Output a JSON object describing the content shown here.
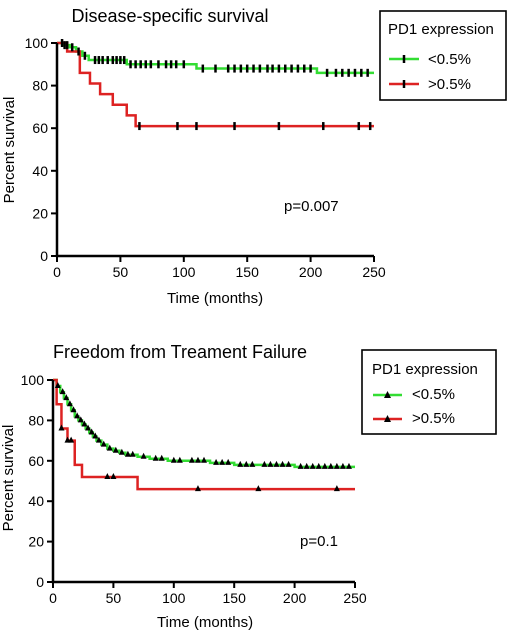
{
  "chart_data": [
    {
      "type": "line",
      "subtype": "kaplan-meier",
      "title": "Disease-specific survival",
      "xlabel": "Time (months)",
      "ylabel": "Percent survival",
      "xlim": [
        0,
        250
      ],
      "ylim": [
        0,
        100
      ],
      "xticks": [
        "0",
        "50",
        "100",
        "150",
        "200",
        "250"
      ],
      "yticks": [
        "0",
        "20",
        "40",
        "60",
        "80",
        "100"
      ],
      "annotation": "p=0.007",
      "legend": {
        "title": "PD1 expression",
        "position": "top-right"
      },
      "series": [
        {
          "name": "<0.5%",
          "color": "#33dd33",
          "x": [
            0,
            5,
            10,
            15,
            20,
            25,
            55,
            110,
            205,
            250
          ],
          "y": [
            100,
            99,
            98,
            96,
            94,
            92,
            90,
            88,
            86,
            86
          ],
          "censor_x": [
            4,
            6,
            8,
            12,
            17,
            22,
            30,
            33,
            36,
            40,
            44,
            47,
            50,
            53,
            58,
            62,
            66,
            70,
            74,
            80,
            86,
            90,
            94,
            100,
            115,
            125,
            135,
            140,
            145,
            150,
            155,
            160,
            166,
            170,
            175,
            180,
            185,
            190,
            195,
            200,
            213,
            220,
            225,
            230,
            235,
            240,
            245
          ]
        },
        {
          "name": ">0.5%",
          "color": "#dd2222",
          "x": [
            0,
            8,
            18,
            26,
            34,
            44,
            55,
            62,
            250
          ],
          "y": [
            100,
            96,
            86,
            81,
            76,
            71,
            66,
            61,
            61
          ],
          "censor_x": [
            65,
            95,
            110,
            140,
            175,
            210,
            238,
            247
          ]
        }
      ]
    },
    {
      "type": "line",
      "subtype": "kaplan-meier",
      "title": "Freedom from Treament Failure",
      "xlabel": "Time (months)",
      "ylabel": "Percent survival",
      "xlim": [
        0,
        250
      ],
      "ylim": [
        0,
        100
      ],
      "xticks": [
        "0",
        "50",
        "100",
        "150",
        "200",
        "250"
      ],
      "yticks": [
        "0",
        "20",
        "40",
        "60",
        "80",
        "100"
      ],
      "annotation": "p=0.1",
      "legend": {
        "title": "PD1 expression",
        "position": "top-right"
      },
      "series": [
        {
          "name": "<0.5%",
          "color": "#33dd33",
          "x": [
            0,
            3,
            6,
            9,
            12,
            15,
            18,
            21,
            24,
            27,
            30,
            33,
            36,
            40,
            45,
            50,
            55,
            60,
            70,
            80,
            95,
            110,
            130,
            150,
            170,
            200,
            250
          ],
          "y": [
            100,
            97,
            94,
            91,
            88,
            85,
            82,
            80,
            78,
            76,
            74,
            72,
            70,
            68,
            66,
            65,
            64,
            63,
            62,
            61,
            60,
            60,
            59,
            58,
            58,
            57,
            57
          ],
          "censor_x": [
            4,
            8,
            11,
            14,
            17,
            20,
            23,
            26,
            29,
            32,
            35,
            38,
            42,
            47,
            52,
            57,
            62,
            66,
            75,
            85,
            90,
            100,
            105,
            115,
            120,
            125,
            135,
            140,
            145,
            155,
            160,
            165,
            175,
            180,
            185,
            190,
            195,
            205,
            210,
            215,
            220,
            225,
            230,
            235,
            240,
            245
          ]
        },
        {
          "name": ">0.5%",
          "color": "#dd2222",
          "x": [
            0,
            3,
            7,
            12,
            18,
            24,
            70,
            250
          ],
          "y": [
            100,
            88,
            76,
            70,
            58,
            52,
            46,
            46
          ],
          "censor_x": [
            7,
            12,
            15,
            45,
            50,
            120,
            170,
            235
          ]
        }
      ]
    }
  ]
}
